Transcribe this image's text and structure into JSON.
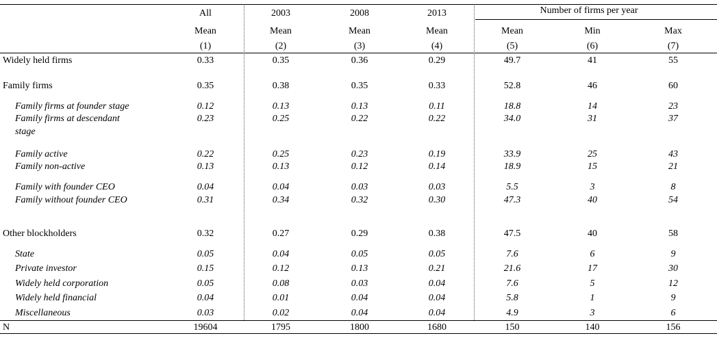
{
  "header": {
    "col_all": "All",
    "col_2003": "2003",
    "col_2008": "2008",
    "col_2013": "2013",
    "col_group": "Number of firms per year",
    "mean": "Mean",
    "min": "Min",
    "max": "Max",
    "nums": [
      "(1)",
      "(2)",
      "(3)",
      "(4)",
      "(5)",
      "(6)",
      "(7)"
    ]
  },
  "rows": [
    {
      "label": "Widely held firms",
      "style": "main",
      "values": [
        "0.33",
        "0.35",
        "0.36",
        "0.29",
        "49.7",
        "41",
        "55"
      ]
    },
    {
      "label": "Family firms",
      "style": "main",
      "values": [
        "0.35",
        "0.38",
        "0.35",
        "0.33",
        "52.8",
        "46",
        "60"
      ]
    },
    {
      "label": "Family firms at founder stage",
      "style": "sub",
      "values": [
        "0.12",
        "0.13",
        "0.13",
        "0.11",
        "18.8",
        "14",
        "23"
      ]
    },
    {
      "label": "Family firms at descendant",
      "label2": "stage",
      "style": "sub",
      "values": [
        "0.23",
        "0.25",
        "0.22",
        "0.22",
        "34.0",
        "31",
        "37"
      ]
    },
    {
      "label": "Family active",
      "style": "sub",
      "values": [
        "0.22",
        "0.25",
        "0.23",
        "0.19",
        "33.9",
        "25",
        "43"
      ]
    },
    {
      "label": "Family non-active",
      "style": "sub",
      "values": [
        "0.13",
        "0.13",
        "0.12",
        "0.14",
        "18.9",
        "15",
        "21"
      ]
    },
    {
      "label": "Family with founder CEO",
      "style": "sub",
      "values": [
        "0.04",
        "0.04",
        "0.03",
        "0.03",
        "5.5",
        "3",
        "8"
      ]
    },
    {
      "label": "Family without founder CEO",
      "style": "sub",
      "values": [
        "0.31",
        "0.34",
        "0.32",
        "0.30",
        "47.3",
        "40",
        "54"
      ]
    },
    {
      "label": "Other blockholders",
      "style": "main",
      "values": [
        "0.32",
        "0.27",
        "0.29",
        "0.38",
        "47.5",
        "40",
        "58"
      ]
    },
    {
      "label": "State",
      "style": "sub",
      "values": [
        "0.05",
        "0.04",
        "0.05",
        "0.05",
        "7.6",
        "6",
        "9"
      ]
    },
    {
      "label": "Private investor",
      "style": "sub",
      "values": [
        "0.15",
        "0.12",
        "0.13",
        "0.21",
        "21.6",
        "17",
        "30"
      ]
    },
    {
      "label": "Widely held corporation",
      "style": "sub",
      "values": [
        "0.05",
        "0.08",
        "0.03",
        "0.04",
        "7.6",
        "5",
        "12"
      ]
    },
    {
      "label": "Widely held financial",
      "style": "sub",
      "values": [
        "0.04",
        "0.01",
        "0.04",
        "0.04",
        "5.8",
        "1",
        "9"
      ]
    },
    {
      "label": "Miscellaneous",
      "style": "sub",
      "values": [
        "0.03",
        "0.02",
        "0.04",
        "0.04",
        "4.9",
        "3",
        "6"
      ]
    },
    {
      "label": "N",
      "style": "main",
      "values": [
        "19604",
        "1795",
        "1800",
        "1680",
        "150",
        "140",
        "156"
      ]
    }
  ]
}
